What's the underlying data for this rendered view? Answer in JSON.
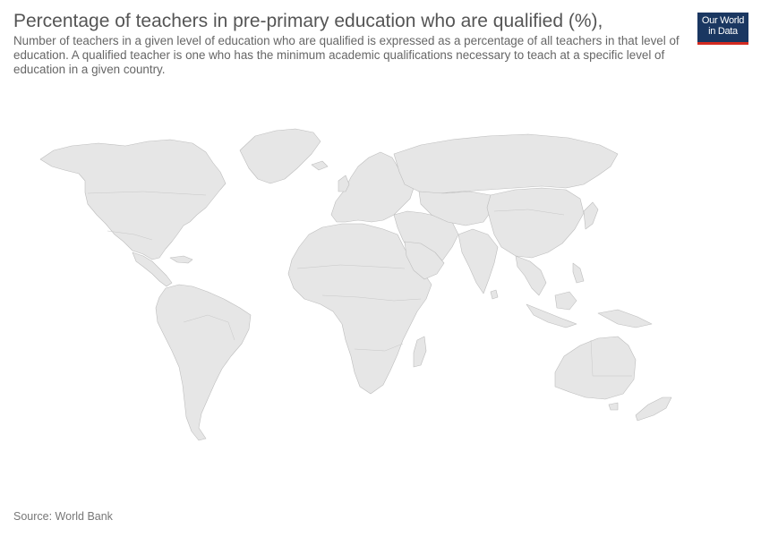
{
  "header": {
    "title": "Percentage of teachers in pre-primary education who are qualified (%),",
    "subtitle": "Number of teachers in a given level of education who are qualified is expressed as a percentage of all teachers in that level of education. A qualified teacher is one who has the minimum academic qualifications necessary to teach at a specific level of education in a given country."
  },
  "logo": {
    "line1": "Our World",
    "line2": "in Data",
    "background": "#1a3761",
    "accent": "#d42b21"
  },
  "map": {
    "fill_color": "#e6e6e6",
    "border_color": "#bdbdbd",
    "data_available": false
  },
  "footer": {
    "source": "Source: World Bank"
  }
}
